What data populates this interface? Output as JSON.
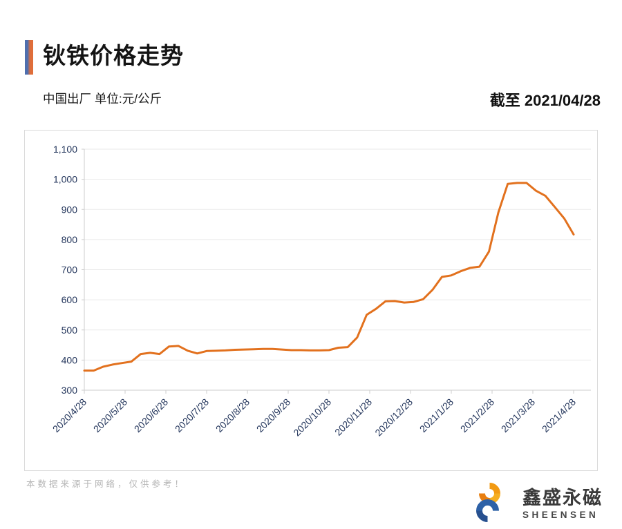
{
  "header": {
    "title": "钬铁价格走势",
    "subtitle": "中国出厂 单位:元/公斤",
    "as_of": "截至 2021/04/28"
  },
  "chart_data": {
    "type": "line",
    "title": "钬铁价格走势",
    "ylabel": "元/公斤",
    "xlabel": "",
    "ylim": [
      300,
      1100
    ],
    "y_step": 100,
    "grid": true,
    "legend": "none",
    "line_color": "#E2711E",
    "colors": {
      "grid": "#EAEAEA",
      "axis": "#CDCDCD",
      "label": "#24365C"
    },
    "y_tick_labels": [
      "300",
      "400",
      "500",
      "600",
      "700",
      "800",
      "900",
      "1,000",
      "1,100"
    ],
    "x_tick_labels": [
      "2020/4/28",
      "2020/5/28",
      "2020/6/28",
      "2020/7/28",
      "2020/8/28",
      "2020/9/28",
      "2020/10/28",
      "2020/11/28",
      "2020/12/28",
      "2021/1/28",
      "2021/2/28",
      "2021/3/28",
      "2021/4/28"
    ],
    "series": [
      {
        "name": "钬铁价格(元/公斤)",
        "cadence": "weekly",
        "values": [
          365,
          365,
          378,
          385,
          390,
          395,
          420,
          424,
          420,
          445,
          447,
          431,
          422,
          430,
          431,
          432,
          434,
          435,
          436,
          437,
          437,
          435,
          433,
          433,
          432,
          432,
          433,
          441,
          443,
          475,
          550,
          570,
          595,
          596,
          591,
          593,
          602,
          633,
          676,
          681,
          695,
          706,
          710,
          760,
          890,
          985,
          988,
          988,
          962,
          945,
          908,
          870,
          817
        ]
      }
    ]
  },
  "footer": {
    "disclaimer": "本数据来源于网络，仅供参考！"
  },
  "logo": {
    "cn": "鑫盛永磁",
    "en": "SHEENSEN",
    "icon": "interlocking-s",
    "orange": "#F0930F",
    "blue": "#2C5EA5"
  }
}
